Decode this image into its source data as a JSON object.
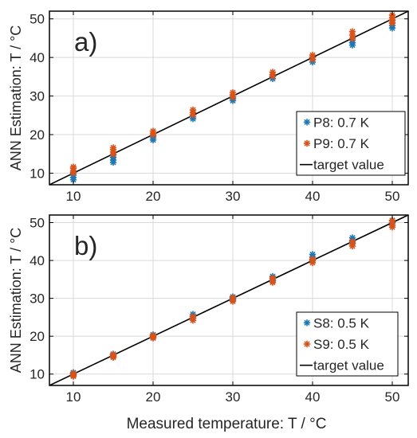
{
  "figure": {
    "xlabel": "Measured temperature: T / °C"
  },
  "chart_data": [
    {
      "type": "scatter",
      "panel_label": "a)",
      "ylabel": "ANN Estimation: T / °C",
      "xlim": [
        7,
        52
      ],
      "ylim": [
        7,
        52
      ],
      "xticks": [
        10,
        20,
        30,
        40,
        50
      ],
      "yticks": [
        10,
        20,
        30,
        40,
        50
      ],
      "grid": true,
      "legend_position": "right",
      "series": [
        {
          "name": "P8: 0.7 K",
          "color": "#1f77b4",
          "marker": "asterisk",
          "points": [
            [
              10,
              8.3
            ],
            [
              10,
              8.9
            ],
            [
              10,
              9.5
            ],
            [
              10,
              10.2
            ],
            [
              15,
              12.8
            ],
            [
              15,
              13.4
            ],
            [
              15,
              14.1
            ],
            [
              15,
              14.7
            ],
            [
              20,
              18.6
            ],
            [
              20,
              19.1
            ],
            [
              20,
              19.6
            ],
            [
              25,
              24.1
            ],
            [
              25,
              24.6
            ],
            [
              25,
              25.1
            ],
            [
              30,
              28.8
            ],
            [
              30,
              29.3
            ],
            [
              30,
              29.8
            ],
            [
              35,
              34.5
            ],
            [
              35,
              35.0
            ],
            [
              35,
              35.5
            ],
            [
              40,
              38.8
            ],
            [
              40,
              39.4
            ],
            [
              40,
              40.1
            ],
            [
              45,
              43.2
            ],
            [
              45,
              43.8
            ],
            [
              45,
              44.5
            ],
            [
              50,
              47.6
            ],
            [
              50,
              48.3
            ],
            [
              50,
              49.0
            ],
            [
              50,
              49.7
            ]
          ]
        },
        {
          "name": "P9: 0.7 K",
          "color": "#d95319",
          "marker": "asterisk",
          "points": [
            [
              10,
              10.0
            ],
            [
              10,
              10.6
            ],
            [
              10,
              11.2
            ],
            [
              10,
              11.6
            ],
            [
              15,
              14.9
            ],
            [
              15,
              15.5
            ],
            [
              15,
              16.1
            ],
            [
              15,
              16.6
            ],
            [
              20,
              19.9
            ],
            [
              20,
              20.4
            ],
            [
              20,
              20.9
            ],
            [
              25,
              25.1
            ],
            [
              25,
              25.7
            ],
            [
              25,
              26.4
            ],
            [
              30,
              29.7
            ],
            [
              30,
              30.3
            ],
            [
              30,
              30.9
            ],
            [
              35,
              35.1
            ],
            [
              35,
              35.6
            ],
            [
              35,
              36.2
            ],
            [
              40,
              39.5
            ],
            [
              40,
              40.0
            ],
            [
              40,
              40.6
            ],
            [
              45,
              44.9
            ],
            [
              45,
              45.8
            ],
            [
              45,
              46.7
            ],
            [
              50,
              48.9
            ],
            [
              50,
              49.6
            ],
            [
              50,
              50.3
            ],
            [
              50,
              51.0
            ]
          ]
        }
      ],
      "reference_line": {
        "name": "target value",
        "color": "#000000",
        "points": [
          [
            7,
            7
          ],
          [
            52,
            52
          ]
        ]
      }
    },
    {
      "type": "scatter",
      "panel_label": "b)",
      "ylabel": "ANN Estimation: T / °C",
      "xlim": [
        7,
        52
      ],
      "ylim": [
        7,
        52
      ],
      "xticks": [
        10,
        20,
        30,
        40,
        50
      ],
      "yticks": [
        10,
        20,
        30,
        40,
        50
      ],
      "grid": true,
      "legend_position": "right",
      "series": [
        {
          "name": "S8: 0.5 K",
          "color": "#1f77b4",
          "marker": "asterisk",
          "points": [
            [
              10,
              9.6
            ],
            [
              10,
              10.0
            ],
            [
              10,
              10.4
            ],
            [
              15,
              14.6
            ],
            [
              15,
              15.0
            ],
            [
              15,
              15.3
            ],
            [
              20,
              19.7
            ],
            [
              20,
              20.1
            ],
            [
              20,
              20.4
            ],
            [
              25,
              24.8
            ],
            [
              25,
              25.3
            ],
            [
              25,
              25.8
            ],
            [
              30,
              29.6
            ],
            [
              30,
              30.0
            ],
            [
              30,
              30.4
            ],
            [
              35,
              34.6
            ],
            [
              35,
              35.2
            ],
            [
              35,
              35.8
            ],
            [
              40,
              40.2
            ],
            [
              40,
              40.9
            ],
            [
              40,
              41.6
            ],
            [
              45,
              44.6
            ],
            [
              45,
              45.3
            ],
            [
              45,
              46.0
            ],
            [
              50,
              49.3
            ],
            [
              50,
              49.9
            ],
            [
              50,
              50.5
            ]
          ]
        },
        {
          "name": "S9: 0.5 K",
          "color": "#d95319",
          "marker": "asterisk",
          "points": [
            [
              10,
              9.4
            ],
            [
              10,
              9.8
            ],
            [
              10,
              10.2
            ],
            [
              15,
              14.4
            ],
            [
              15,
              14.8
            ],
            [
              15,
              15.2
            ],
            [
              20,
              19.5
            ],
            [
              20,
              19.9
            ],
            [
              20,
              20.2
            ],
            [
              25,
              24.2
            ],
            [
              25,
              24.7
            ],
            [
              25,
              25.2
            ],
            [
              30,
              29.2
            ],
            [
              30,
              29.7
            ],
            [
              30,
              30.2
            ],
            [
              35,
              34.2
            ],
            [
              35,
              34.8
            ],
            [
              35,
              35.4
            ],
            [
              40,
              39.4
            ],
            [
              40,
              39.9
            ],
            [
              40,
              40.4
            ],
            [
              45,
              43.8
            ],
            [
              45,
              44.4
            ],
            [
              45,
              45.0
            ],
            [
              50,
              48.8
            ],
            [
              50,
              49.4
            ],
            [
              50,
              50.0
            ],
            [
              50,
              50.6
            ]
          ]
        }
      ],
      "reference_line": {
        "name": "target value",
        "color": "#000000",
        "points": [
          [
            7,
            7
          ],
          [
            52,
            52
          ]
        ]
      }
    }
  ]
}
